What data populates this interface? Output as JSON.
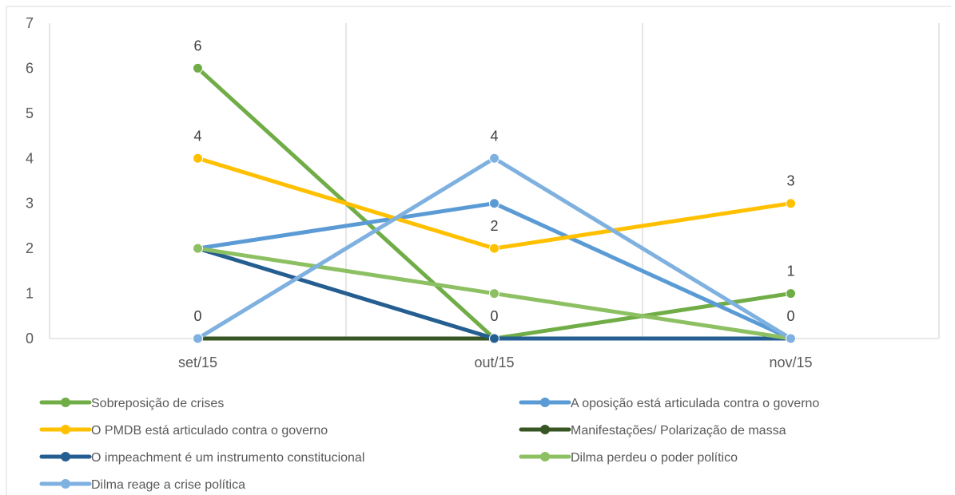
{
  "chart_data": {
    "type": "line",
    "title": "",
    "xlabel": "",
    "ylabel": "",
    "categories": [
      "set/15",
      "out/15",
      "nov/15"
    ],
    "ylim": [
      0,
      7
    ],
    "yticks": [
      0,
      1,
      2,
      3,
      4,
      5,
      6,
      7
    ],
    "grid": "vertical",
    "legend_position": "bottom",
    "data_labels_shown_for": [
      "Sobreposição de crises",
      "O PMDB está articulado contra o governo",
      "Dilma reage a crise política"
    ],
    "series": [
      {
        "name": "Sobreposição de crises",
        "values": [
          6,
          0,
          1
        ],
        "color": "#70ad47"
      },
      {
        "name": "A oposição está articulada contra o governo",
        "values": [
          2,
          3,
          0
        ],
        "color": "#5b9bd5"
      },
      {
        "name": "O PMDB está articulado contra o governo",
        "values": [
          4,
          2,
          3
        ],
        "color": "#ffc000"
      },
      {
        "name": "Manifestações/ Polarização de massa",
        "values": [
          0,
          0,
          0
        ],
        "color": "#375623"
      },
      {
        "name": "O impeachment é um instrumento constitucional",
        "values": [
          2,
          0,
          0
        ],
        "color": "#255e91"
      },
      {
        "name": "Dilma perdeu o poder político",
        "values": [
          2,
          1,
          0
        ],
        "color": "#8dc063"
      },
      {
        "name": "Dilma reage a crise política",
        "values": [
          0,
          4,
          0
        ],
        "color": "#7fb1e0"
      }
    ]
  }
}
